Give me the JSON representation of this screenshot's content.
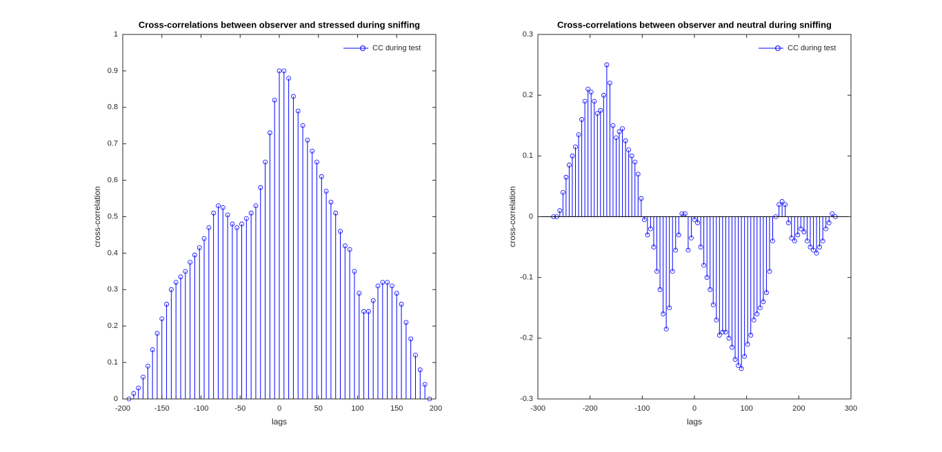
{
  "chart_data": [
    {
      "type": "stem",
      "title": "Cross-correlations between observer and stressed during sniffing",
      "xlabel": "lags",
      "ylabel": "cross-correlation",
      "xlim": [
        -200,
        200
      ],
      "xticks": [
        -200,
        -150,
        -100,
        -50,
        0,
        50,
        100,
        150,
        200
      ],
      "ylim": [
        0,
        1
      ],
      "yticks": [
        0,
        0.1,
        0.2,
        0.3,
        0.4,
        0.5,
        0.6,
        0.7,
        0.8,
        0.9,
        1
      ],
      "legend": "upper right",
      "x": [
        -192,
        -186,
        -180,
        -174,
        -168,
        -162,
        -156,
        -150,
        -144,
        -138,
        -132,
        -126,
        -120,
        -114,
        -108,
        -102,
        -96,
        -90,
        -84,
        -78,
        -72,
        -66,
        -60,
        -54,
        -48,
        -42,
        -36,
        -30,
        -24,
        -18,
        -12,
        -6,
        0,
        6,
        12,
        18,
        24,
        30,
        36,
        42,
        48,
        54,
        60,
        66,
        72,
        78,
        84,
        90,
        96,
        102,
        108,
        114,
        120,
        126,
        132,
        138,
        144,
        150,
        156,
        162,
        168,
        174,
        180,
        186,
        192
      ],
      "series": [
        {
          "name": "CC during test",
          "color": "#0000ff",
          "values": [
            0,
            0.015,
            0.03,
            0.06,
            0.09,
            0.135,
            0.18,
            0.22,
            0.26,
            0.3,
            0.32,
            0.335,
            0.35,
            0.375,
            0.395,
            0.415,
            0.44,
            0.47,
            0.51,
            0.53,
            0.525,
            0.505,
            0.48,
            0.47,
            0.48,
            0.495,
            0.51,
            0.53,
            0.58,
            0.65,
            0.73,
            0.82,
            0.9,
            0.9,
            0.88,
            0.83,
            0.79,
            0.75,
            0.71,
            0.68,
            0.65,
            0.61,
            0.57,
            0.54,
            0.51,
            0.46,
            0.42,
            0.41,
            0.35,
            0.29,
            0.24,
            0.24,
            0.27,
            0.31,
            0.32,
            0.32,
            0.31,
            0.29,
            0.26,
            0.21,
            0.165,
            0.12,
            0.08,
            0.04,
            0
          ]
        }
      ]
    },
    {
      "type": "stem",
      "title": "Cross-correlations between observer and neutral during sniffing",
      "xlabel": "lags",
      "ylabel": "cross-correlation",
      "xlim": [
        -300,
        300
      ],
      "xticks": [
        -300,
        -200,
        -100,
        0,
        100,
        200,
        300
      ],
      "ylim": [
        -0.3,
        0.3
      ],
      "yticks": [
        -0.3,
        -0.2,
        -0.1,
        0,
        0.1,
        0.2,
        0.3
      ],
      "legend": "upper right",
      "x": [
        -270,
        -264,
        -258,
        -252,
        -246,
        -240,
        -234,
        -228,
        -222,
        -216,
        -210,
        -204,
        -198,
        -192,
        -186,
        -180,
        -174,
        -168,
        -162,
        -156,
        -150,
        -144,
        -138,
        -132,
        -126,
        -120,
        -114,
        -108,
        -102,
        -96,
        -90,
        -84,
        -78,
        -72,
        -66,
        -60,
        -54,
        -48,
        -42,
        -36,
        -30,
        -24,
        -18,
        -12,
        -6,
        0,
        6,
        12,
        18,
        24,
        30,
        36,
        42,
        48,
        54,
        60,
        66,
        72,
        78,
        84,
        90,
        96,
        102,
        108,
        114,
        120,
        126,
        132,
        138,
        144,
        150,
        156,
        162,
        168,
        174,
        180,
        186,
        192,
        198,
        204,
        210,
        216,
        222,
        228,
        234,
        240,
        246,
        252,
        258,
        264,
        270
      ],
      "series": [
        {
          "name": "CC during test",
          "color": "#0000ff",
          "values": [
            0,
            0,
            0.01,
            0.04,
            0.065,
            0.085,
            0.1,
            0.115,
            0.135,
            0.16,
            0.19,
            0.21,
            0.205,
            0.19,
            0.17,
            0.175,
            0.2,
            0.25,
            0.22,
            0.15,
            0.13,
            0.14,
            0.145,
            0.125,
            0.11,
            0.1,
            0.09,
            0.07,
            0.03,
            -0.005,
            -0.03,
            -0.02,
            -0.05,
            -0.09,
            -0.12,
            -0.16,
            -0.185,
            -0.15,
            -0.09,
            -0.055,
            -0.03,
            0.005,
            0.005,
            -0.055,
            -0.035,
            -0.005,
            -0.01,
            -0.05,
            -0.08,
            -0.1,
            -0.12,
            -0.145,
            -0.17,
            -0.195,
            -0.19,
            -0.19,
            -0.2,
            -0.215,
            -0.235,
            -0.245,
            -0.25,
            -0.23,
            -0.21,
            -0.195,
            -0.17,
            -0.16,
            -0.15,
            -0.14,
            -0.125,
            -0.09,
            -0.04,
            0,
            0.02,
            0.025,
            0.02,
            -0.01,
            -0.035,
            -0.04,
            -0.03,
            -0.02,
            -0.025,
            -0.04,
            -0.05,
            -0.055,
            -0.06,
            -0.05,
            -0.04,
            -0.02,
            -0.01,
            0.005,
            0
          ]
        }
      ]
    }
  ]
}
